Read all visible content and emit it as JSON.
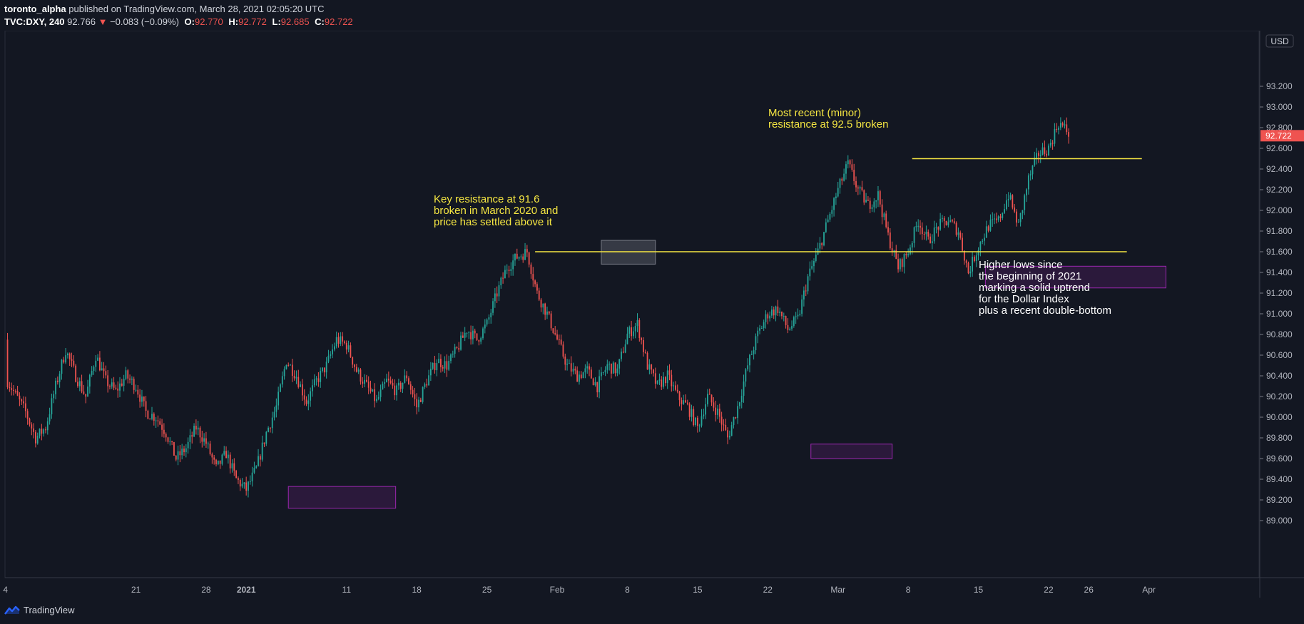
{
  "header": {
    "user": "toronto_alpha",
    "published": "published on TradingView.com, March 28, 2021 02:05:20 UTC",
    "symbol": "TVC:DXY, 240",
    "last": "92.766",
    "change_arrow": "▼",
    "change": "−0.083 (−0.09%)",
    "open_label": "O:",
    "open": "92.770",
    "high_label": "H:",
    "high": "92.772",
    "low_label": "L:",
    "low": "92.685",
    "close_label": "C:",
    "close": "92.722"
  },
  "footer": {
    "brand": "TradingView",
    "logo_icon": "tradingview-logo-icon"
  },
  "colors": {
    "background": "#131722",
    "up": "#26a69a",
    "down": "#ef5350",
    "annotation_text": "#f5e642",
    "resistance_line": "#f5e642",
    "box_purple": "#9c27b0",
    "box_gray": "#787b86"
  },
  "chart_data": {
    "type": "candlestick",
    "currency": "USD",
    "current_price_label": "92.722",
    "y_ticks": [
      "93.200",
      "93.000",
      "92.800",
      "92.600",
      "92.400",
      "92.200",
      "92.000",
      "91.800",
      "91.600",
      "91.400",
      "91.200",
      "91.000",
      "90.800",
      "90.600",
      "90.400",
      "90.200",
      "90.000",
      "89.800",
      "89.600",
      "89.400",
      "89.200",
      "89.000"
    ],
    "ylim": [
      88.85,
      93.3
    ],
    "x_ticks": [
      {
        "label": "4",
        "day": -24
      },
      {
        "label": "21",
        "day": -11
      },
      {
        "label": "28",
        "day": -4
      },
      {
        "label": "2021",
        "day": 0
      },
      {
        "label": "11",
        "day": 10
      },
      {
        "label": "18",
        "day": 17
      },
      {
        "label": "25",
        "day": 24
      },
      {
        "label": "Feb",
        "day": 31
      },
      {
        "label": "8",
        "day": 38
      },
      {
        "label": "15",
        "day": 45
      },
      {
        "label": "22",
        "day": 52
      },
      {
        "label": "Mar",
        "day": 59
      },
      {
        "label": "8",
        "day": 66
      },
      {
        "label": "15",
        "day": 73
      },
      {
        "label": "22",
        "day": 80
      },
      {
        "label": "26",
        "day": 84
      },
      {
        "label": "Apr",
        "day": 90
      }
    ],
    "anchor_closes": [
      [
        -28,
        90.75
      ],
      [
        -25,
        90.55
      ],
      [
        -22,
        90.05
      ],
      [
        -21,
        89.8
      ],
      [
        -20,
        89.9
      ],
      [
        -19,
        90.3
      ],
      [
        -18,
        90.65
      ],
      [
        -17,
        90.4
      ],
      [
        -16,
        90.2
      ],
      [
        -15,
        90.6
      ],
      [
        -14,
        90.35
      ],
      [
        -13,
        90.25
      ],
      [
        -12,
        90.4
      ],
      [
        -11,
        90.3
      ],
      [
        -10,
        90.05
      ],
      [
        -9,
        90.0
      ],
      [
        -8,
        89.85
      ],
      [
        -7,
        89.6
      ],
      [
        -6,
        89.7
      ],
      [
        -5,
        89.9
      ],
      [
        -4,
        89.75
      ],
      [
        -3,
        89.5
      ],
      [
        -2,
        89.65
      ],
      [
        -1,
        89.4
      ],
      [
        0,
        89.3
      ],
      [
        1,
        89.5
      ],
      [
        2,
        89.85
      ],
      [
        3,
        90.1
      ],
      [
        4,
        90.55
      ],
      [
        5,
        90.4
      ],
      [
        6,
        90.15
      ],
      [
        7,
        90.35
      ],
      [
        8,
        90.5
      ],
      [
        9,
        90.75
      ],
      [
        10,
        90.7
      ],
      [
        11,
        90.45
      ],
      [
        12,
        90.3
      ],
      [
        13,
        90.15
      ],
      [
        14,
        90.35
      ],
      [
        15,
        90.25
      ],
      [
        16,
        90.4
      ],
      [
        17,
        90.1
      ],
      [
        18,
        90.35
      ],
      [
        19,
        90.55
      ],
      [
        20,
        90.5
      ],
      [
        21,
        90.65
      ],
      [
        22,
        90.85
      ],
      [
        23,
        90.75
      ],
      [
        24,
        90.9
      ],
      [
        25,
        91.2
      ],
      [
        26,
        91.45
      ],
      [
        27,
        91.55
      ],
      [
        28,
        91.6
      ],
      [
        29,
        91.2
      ],
      [
        30,
        91.0
      ],
      [
        31,
        90.75
      ],
      [
        32,
        90.5
      ],
      [
        33,
        90.4
      ],
      [
        34,
        90.45
      ],
      [
        35,
        90.3
      ],
      [
        36,
        90.5
      ],
      [
        37,
        90.45
      ],
      [
        38,
        90.8
      ],
      [
        39,
        90.9
      ],
      [
        40,
        90.5
      ],
      [
        41,
        90.3
      ],
      [
        42,
        90.4
      ],
      [
        43,
        90.2
      ],
      [
        44,
        90.1
      ],
      [
        45,
        89.9
      ],
      [
        46,
        90.2
      ],
      [
        47,
        90.05
      ],
      [
        48,
        89.8
      ],
      [
        49,
        90.1
      ],
      [
        50,
        90.5
      ],
      [
        51,
        90.8
      ],
      [
        52,
        91.0
      ],
      [
        53,
        91.05
      ],
      [
        54,
        90.85
      ],
      [
        55,
        90.95
      ],
      [
        56,
        91.35
      ],
      [
        57,
        91.6
      ],
      [
        58,
        91.9
      ],
      [
        59,
        92.2
      ],
      [
        60,
        92.45
      ],
      [
        61,
        92.2
      ],
      [
        62,
        92.05
      ],
      [
        63,
        92.15
      ],
      [
        64,
        91.75
      ],
      [
        65,
        91.45
      ],
      [
        66,
        91.6
      ],
      [
        67,
        91.9
      ],
      [
        68,
        91.7
      ],
      [
        69,
        91.85
      ],
      [
        70,
        91.9
      ],
      [
        71,
        91.8
      ],
      [
        72,
        91.4
      ],
      [
        73,
        91.65
      ],
      [
        74,
        91.85
      ],
      [
        75,
        91.9
      ],
      [
        76,
        92.15
      ],
      [
        77,
        91.85
      ],
      [
        78,
        92.3
      ],
      [
        79,
        92.55
      ],
      [
        80,
        92.6
      ],
      [
        81,
        92.85
      ],
      [
        82,
        92.75
      ]
    ],
    "resistance_lines": [
      {
        "name": "key-resistance-line",
        "price": 91.6,
        "from_day": 28.8,
        "to_day": 87.8
      },
      {
        "name": "minor-resistance-line",
        "price": 92.5,
        "from_day": 66.4,
        "to_day": 89.3
      }
    ],
    "boxes": [
      {
        "name": "low-box-jan",
        "kind": "purple",
        "day_from": 4.2,
        "day_to": 14.9,
        "price_top": 89.33,
        "price_bottom": 89.12
      },
      {
        "name": "low-box-feb",
        "kind": "purple",
        "day_from": 56.3,
        "day_to": 64.4,
        "price_top": 89.74,
        "price_bottom": 89.6
      },
      {
        "name": "low-box-mar",
        "kind": "purple",
        "day_from": 73.7,
        "day_to": 91.7,
        "price_top": 91.46,
        "price_bottom": 91.25
      },
      {
        "name": "resistance-box-feb",
        "kind": "gray",
        "day_from": 35.4,
        "day_to": 40.8,
        "price_top": 91.71,
        "price_bottom": 91.48
      }
    ],
    "annotations": [
      {
        "name": "key-resistance-note",
        "color": "yellow",
        "lines": [
          "Key resistance at 91.6",
          "broken in March 2020 and",
          "price has settled above it"
        ]
      },
      {
        "name": "minor-resistance-note",
        "color": "yellow",
        "lines": [
          "Most recent (minor)",
          "resistance at 92.5 broken"
        ]
      },
      {
        "name": "higher-lows-note",
        "color": "white",
        "lines": [
          "Higher lows since",
          "the beginning of 2021",
          "marking a solid uptrend",
          "for the Dollar Index",
          "plus a recent double-bottom"
        ]
      }
    ]
  }
}
